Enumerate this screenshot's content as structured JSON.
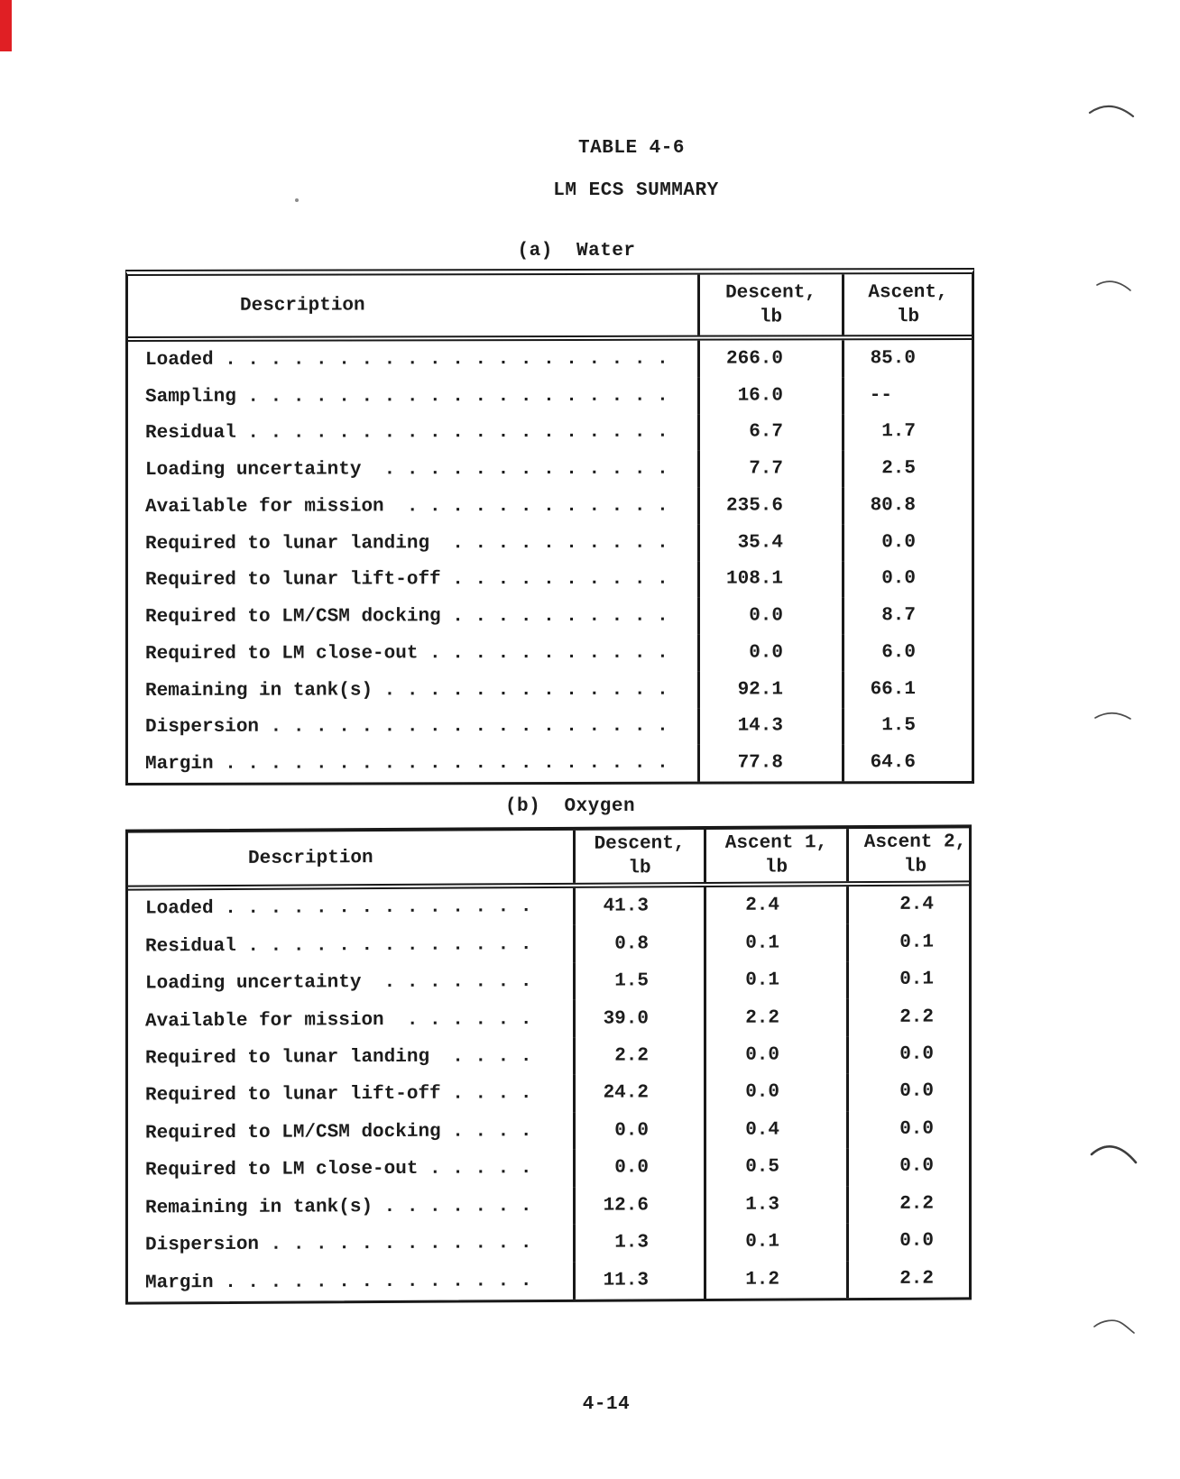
{
  "page": {
    "title": "TABLE 4-6",
    "subtitle": "LM ECS SUMMARY",
    "page_number": "4-14"
  },
  "water_table": {
    "caption": "(a)  Water",
    "headers": {
      "description": "Description",
      "descent": {
        "title": "Descent,",
        "unit": "lb"
      },
      "ascent": {
        "title": "Ascent,",
        "unit": "lb"
      }
    },
    "rows": [
      {
        "label": "Loaded . . . . . . . . . . . . . . . . . . . .",
        "descent": "266.0",
        "ascent": "85.0"
      },
      {
        "label": "Sampling . . . . . . . . . . . . . . . . . . .",
        "descent": "16.0",
        "ascent": "--"
      },
      {
        "label": "Residual . . . . . . . . . . . . . . . . . . .",
        "descent": "6.7",
        "ascent": "1.7"
      },
      {
        "label": "Loading uncertainty  . . . . . . . . . . . . .",
        "descent": "7.7",
        "ascent": "2.5"
      },
      {
        "label": "Available for mission  . . . . . . . . . . . .",
        "descent": "235.6",
        "ascent": "80.8"
      },
      {
        "label": "Required to lunar landing  . . . . . . . . . .",
        "descent": "35.4",
        "ascent": "0.0"
      },
      {
        "label": "Required to lunar lift-off . . . . . . . . . .",
        "descent": "108.1",
        "ascent": "0.0"
      },
      {
        "label": "Required to LM/CSM docking . . . . . . . . . .",
        "descent": "0.0",
        "ascent": "8.7"
      },
      {
        "label": "Required to LM close-out . . . . . . . . . . .",
        "descent": "0.0",
        "ascent": "6.0"
      },
      {
        "label": "Remaining in tank(s) . . . . . . . . . . . . .",
        "descent": "92.1",
        "ascent": "66.1"
      },
      {
        "label": "Dispersion . . . . . . . . . . . . . . . . . .",
        "descent": "14.3",
        "ascent": "1.5"
      },
      {
        "label": "Margin . . . . . . . . . . . . . . . . . . . .",
        "descent": "77.8",
        "ascent": "64.6"
      }
    ]
  },
  "oxygen_table": {
    "caption": "(b)  Oxygen",
    "headers": {
      "description": "Description",
      "descent": {
        "title": "Descent,",
        "unit": "lb"
      },
      "ascent1": {
        "title": "Ascent 1,",
        "unit": "lb"
      },
      "ascent2": {
        "title": "Ascent 2,",
        "unit": "lb"
      }
    },
    "rows": [
      {
        "label": "Loaded . . . . . . . . . . . . . .",
        "descent": "41.3",
        "ascent1": "2.4",
        "ascent2": "2.4"
      },
      {
        "label": "Residual . . . . . . . . . . . . .",
        "descent": "0.8",
        "ascent1": "0.1",
        "ascent2": "0.1"
      },
      {
        "label": "Loading uncertainty  . . . . . . .",
        "descent": "1.5",
        "ascent1": "0.1",
        "ascent2": "0.1"
      },
      {
        "label": "Available for mission  . . . . . .",
        "descent": "39.0",
        "ascent1": "2.2",
        "ascent2": "2.2"
      },
      {
        "label": "Required to lunar landing  . . . .",
        "descent": "2.2",
        "ascent1": "0.0",
        "ascent2": "0.0"
      },
      {
        "label": "Required to lunar lift-off . . . .",
        "descent": "24.2",
        "ascent1": "0.0",
        "ascent2": "0.0"
      },
      {
        "label": "Required to LM/CSM docking . . . .",
        "descent": "0.0",
        "ascent1": "0.4",
        "ascent2": "0.0"
      },
      {
        "label": "Required to LM close-out . . . . .",
        "descent": "0.0",
        "ascent1": "0.5",
        "ascent2": "0.0"
      },
      {
        "label": "Remaining in tank(s) . . . . . . .",
        "descent": "12.6",
        "ascent1": "1.3",
        "ascent2": "2.2"
      },
      {
        "label": "Dispersion . . . . . . . . . . . .",
        "descent": "1.3",
        "ascent1": "0.1",
        "ascent2": "0.0"
      },
      {
        "label": "Margin . . . . . . . . . . . . . .",
        "descent": "11.3",
        "ascent1": "1.2",
        "ascent2": "2.2"
      }
    ]
  },
  "artifacts": {
    "red_mark_color": "#e01f24",
    "curl_mark_color": "#454545"
  }
}
